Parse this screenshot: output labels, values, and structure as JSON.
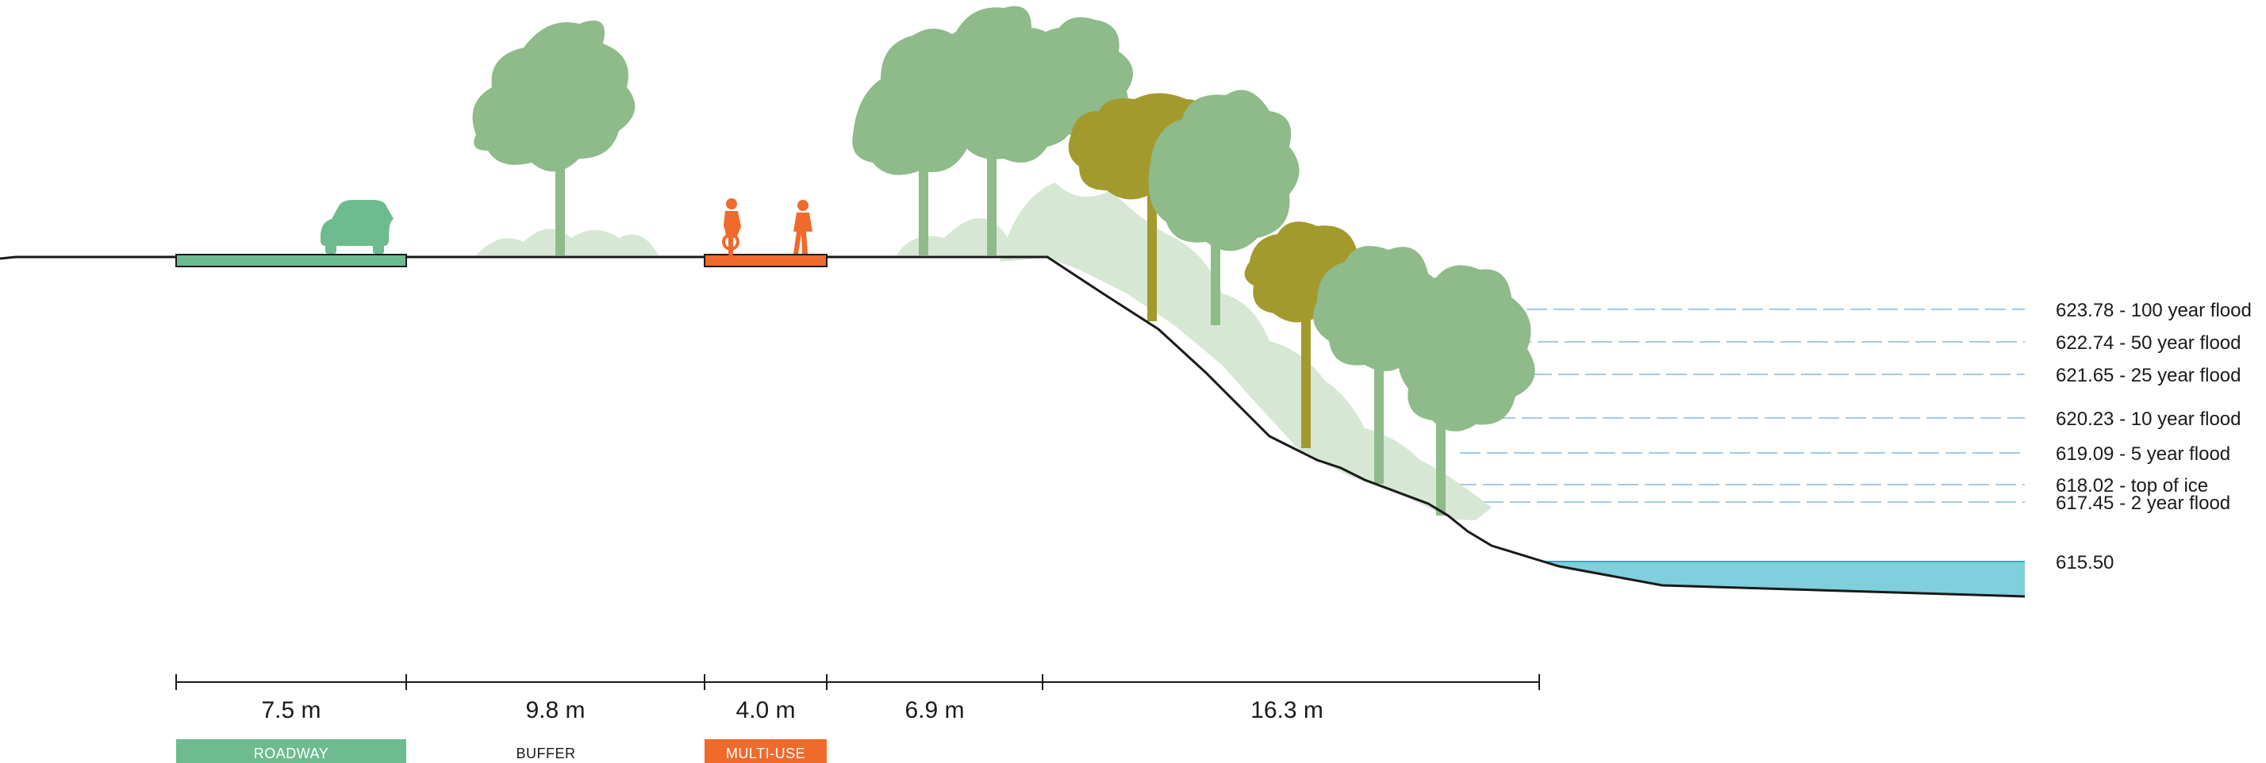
{
  "elevations": [
    {
      "label": "623.78 - 100 year flood"
    },
    {
      "label": "622.74 - 50 year flood"
    },
    {
      "label": "621.65 - 25 year flood"
    },
    {
      "label": "620.23 - 10 year flood"
    },
    {
      "label": "619.09 - 5 year flood"
    },
    {
      "label": "618.02 - top of ice"
    },
    {
      "label": "617.45 - 2 year flood"
    },
    {
      "label": "615.50"
    }
  ],
  "segments": [
    {
      "label": "7.5 m"
    },
    {
      "label": "9.8 m"
    },
    {
      "label": "4.0 m"
    },
    {
      "label": "6.9 m"
    },
    {
      "label": "16.3 m"
    }
  ],
  "zones": {
    "roadway": "ROADWAY",
    "buffer": "BUFFER",
    "multi_use": "MULTI-USE"
  },
  "colors": {
    "roadway": "#6dbb8f",
    "multi_use": "#ef6a2b",
    "water": "#7fcfdc",
    "tree_green": "#8fba8a",
    "tree_olive": "#a39a2e",
    "understory": "#d6e8d4",
    "flood_line": "#a8c8e6"
  }
}
